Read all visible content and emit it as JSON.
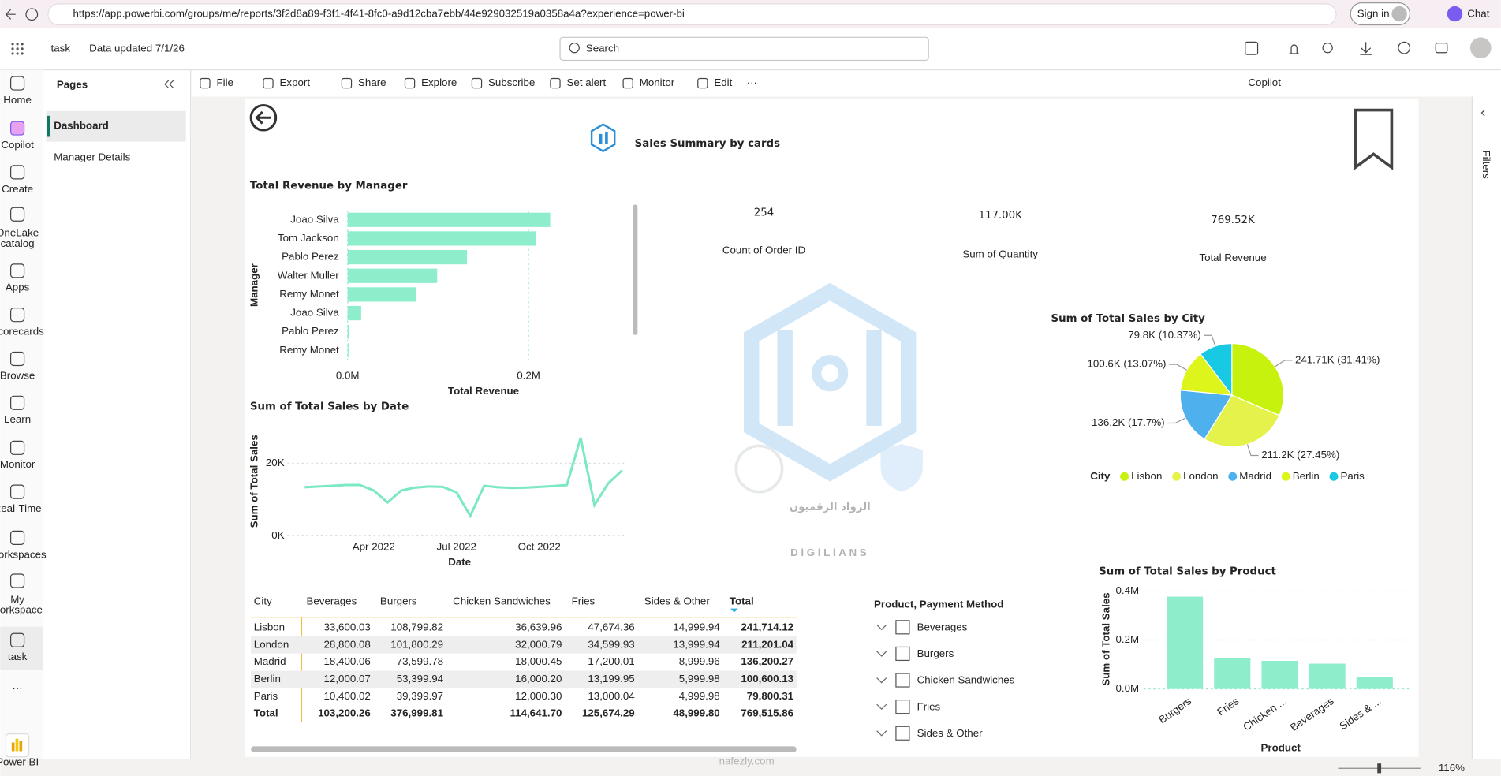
{
  "browser": {
    "url": "https://app.powerbi.com/groups/me/reports/3f2d8a89-f3f1-4f41-8fc0-a9d12cba7ebb/44e929032519a0358a4a?experience=power-bi",
    "sign_in": "Sign in",
    "chat": "Chat"
  },
  "header": {
    "workspace": "task",
    "data_updated": "Data updated 7/1/26",
    "search": "Search"
  },
  "nav": [
    [
      "Home"
    ],
    [
      "Copilot"
    ],
    [
      "Create"
    ],
    [
      "OneLake",
      "catalog"
    ],
    [
      "Apps"
    ],
    [
      "Scorecards"
    ],
    [
      "Browse"
    ],
    [
      "Learn"
    ],
    [
      "Monitor"
    ],
    [
      "Real-Time"
    ],
    [
      "Workspaces"
    ],
    [
      "My",
      "workspace"
    ],
    [
      "task"
    ]
  ],
  "brand": "Power BI",
  "pages": {
    "title": "Pages",
    "items": [
      "Dashboard",
      "Manager Details"
    ]
  },
  "toolbar": {
    "items": [
      "File",
      "Export",
      "Share",
      "Explore",
      "Subscribe",
      "Set alert",
      "Monitor",
      "Edit"
    ],
    "copilot": "Copilot"
  },
  "filters": "Filters",
  "report": {
    "title": "Sales Summary by cards",
    "cards": [
      {
        "value": "254",
        "label": "Count of Order ID"
      },
      {
        "value": "117.00K",
        "label": "Sum of Quantity"
      },
      {
        "value": "769.52K",
        "label": "Total Revenue"
      }
    ]
  },
  "chart_data": [
    {
      "type": "hbar",
      "title": "Total Revenue by Manager",
      "categories": [
        "Joao Silva",
        "Tom Jackson",
        "Pablo Perez",
        "Walter Muller",
        "Remy Monet",
        "Joao Silva",
        "Pablo Perez",
        "Remy Monet"
      ],
      "values": [
        224000,
        208000,
        132000,
        99000,
        76000,
        15000,
        2000,
        1000
      ],
      "color": "#8eeecb",
      "xlim": [
        0,
        310000
      ],
      "xticks": [
        {
          "value": 0,
          "label": "0.0M"
        },
        {
          "value": 200000,
          "label": "0.2M"
        }
      ],
      "xlabel": "Total Revenue",
      "ylabel": "Manager",
      "grid": true
    },
    {
      "type": "line",
      "title": "Sum of Total Sales by Date",
      "categories": [
        null,
        null,
        null,
        null,
        null,
        "Apr 2022",
        null,
        null,
        null,
        null,
        null,
        "Jul 2022",
        null,
        null,
        null,
        null,
        null,
        "Oct 2022",
        null,
        null,
        null,
        null,
        null,
        null
      ],
      "values": [
        13400,
        13600,
        13800,
        14000,
        14000,
        12500,
        9200,
        12500,
        13300,
        13600,
        13500,
        12000,
        5500,
        13800,
        13400,
        13200,
        13300,
        13500,
        13700,
        14000,
        27000,
        8500,
        14500,
        18000
      ],
      "color": "#7de8c4",
      "ylim": [
        0,
        29000
      ],
      "yticks": [
        {
          "value": 0,
          "label": "0K"
        },
        {
          "value": 20000,
          "label": "20K"
        }
      ],
      "xlabel": "Date",
      "ylabel": "Sum of Total Sales",
      "grid": true
    },
    {
      "type": "pie",
      "title": "Sum of Total Sales by City",
      "categories": [
        "Lisbon",
        "London",
        "Madrid",
        "Berlin",
        "Paris"
      ],
      "values": [
        241714.12,
        211201.04,
        136200.27,
        100600.13,
        79800.31
      ],
      "value_labels": [
        "241.71K (31.41%)",
        "211.2K (27.45%)",
        "136.2K (17.7%)",
        "100.6K (13.07%)",
        "79.8K (10.37%)"
      ],
      "colors": [
        "#c6f20e",
        "#e6f24c",
        "#4fb0ee",
        "#def51c",
        "#17c9e3"
      ],
      "legend_title": "City",
      "legend": "bottom-left"
    },
    {
      "type": "column",
      "title": "Sum of Total Sales by Product",
      "categories": [
        "Burgers",
        "Fries",
        "Chicken ...",
        "Beverages",
        "Sides & ..."
      ],
      "values": [
        376999.81,
        125674.29,
        114641.7,
        103200.26,
        48999.8
      ],
      "color": "#8eeecb",
      "ylim": [
        0,
        430000
      ],
      "yticks": [
        {
          "value": 0,
          "label": "0.0M"
        },
        {
          "value": 200000,
          "label": "0.2M"
        },
        {
          "value": 400000,
          "label": "0.4M"
        }
      ],
      "xlabel": "Product",
      "ylabel": "Sum of Total Sales",
      "grid": true
    }
  ],
  "table": {
    "header": [
      "City",
      "Beverages",
      "Burgers",
      "Chicken Sandwiches",
      "Fries",
      "Sides & Other",
      "Total"
    ],
    "rows": [
      [
        "Lisbon",
        "33,600.03",
        "108,799.82",
        "36,639.96",
        "47,674.36",
        "14,999.94",
        "241,714.12"
      ],
      [
        "London",
        "28,800.08",
        "101,800.29",
        "32,000.79",
        "34,599.93",
        "13,999.94",
        "211,201.04"
      ],
      [
        "Madrid",
        "18,400.06",
        "73,599.78",
        "18,000.45",
        "17,200.01",
        "8,999.96",
        "136,200.27"
      ],
      [
        "Berlin",
        "12,000.07",
        "53,399.94",
        "16,000.20",
        "13,199.95",
        "5,999.98",
        "100,600.13"
      ],
      [
        "Paris",
        "10,400.02",
        "39,399.97",
        "12,000.30",
        "13,000.04",
        "4,999.98",
        "79,800.31"
      ]
    ],
    "total": [
      "Total",
      "103,200.26",
      "376,999.81",
      "114,641.70",
      "125,674.29",
      "48,999.80",
      "769,515.86"
    ]
  },
  "slicer": {
    "title": "Product, Payment Method",
    "items": [
      "Beverages",
      "Burgers",
      "Chicken Sandwiches",
      "Fries",
      "Sides & Other"
    ]
  },
  "watermark": {
    "arabic": "الرواد الرقميون",
    "latin": "DiGiLiANS",
    "site": "nafezly.com"
  },
  "status": {
    "zoom": "116%"
  }
}
